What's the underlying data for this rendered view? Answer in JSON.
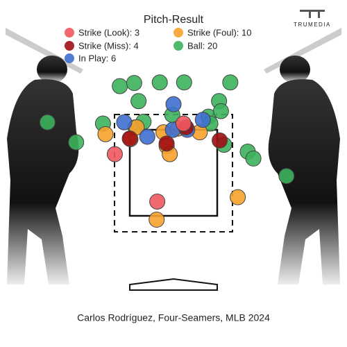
{
  "chart_data": {
    "type": "scatter",
    "title": "Pitch-Result",
    "logo": "TRUMEDIA",
    "caption": "Carlos Rodríguez, Four-Seamers, MLB 2024",
    "xlim": [
      -2.78,
      2.78
    ],
    "ylim": [
      -0.6,
      4.96
    ],
    "series": [
      {
        "name": "Strike (Look): 3",
        "color": "#f0595f",
        "x": [
          0.16,
          -0.94,
          -0.26
        ],
        "y": [
          2.98,
          2.49,
          1.73
        ]
      },
      {
        "name": "Strike (Miss): 4",
        "color": "#a00d12",
        "x": [
          -0.11,
          0.74,
          -0.7,
          0.2
        ],
        "y": [
          2.66,
          2.71,
          2.74,
          2.92
        ]
      },
      {
        "name": "In Play: 6",
        "color": "#3e6fd0",
        "x": [
          0.0,
          -0.79,
          -0.42,
          -0.01,
          0.22,
          0.47
        ],
        "y": [
          3.29,
          3.0,
          2.77,
          2.88,
          2.88,
          3.04
        ]
      },
      {
        "name": "Strike (Foul): 10",
        "color": "#f7a22c",
        "x": [
          -1.09,
          -0.69,
          -0.16,
          -0.11,
          -0.06,
          0.07,
          0.42,
          -0.27,
          1.03,
          -0.59
        ],
        "y": [
          2.81,
          2.73,
          2.84,
          2.62,
          2.49,
          2.9,
          2.84,
          1.44,
          1.8,
          2.92
        ]
      },
      {
        "name": "Ball: 20",
        "color": "#3cb35c",
        "x": [
          -0.86,
          -0.63,
          -0.22,
          0.17,
          0.91,
          -0.56,
          0.73,
          -2.02,
          -1.56,
          -1.13,
          -0.61,
          -0.48,
          -0.02,
          0.56,
          0.76,
          0.81,
          1.19,
          1.28,
          1.81,
          0.59
        ],
        "y": [
          3.58,
          3.63,
          3.64,
          3.64,
          3.64,
          3.34,
          3.34,
          3.0,
          2.68,
          2.98,
          2.92,
          3.01,
          3.12,
          3.09,
          3.18,
          2.64,
          2.53,
          2.42,
          2.14,
          2.98
        ]
      }
    ]
  }
}
